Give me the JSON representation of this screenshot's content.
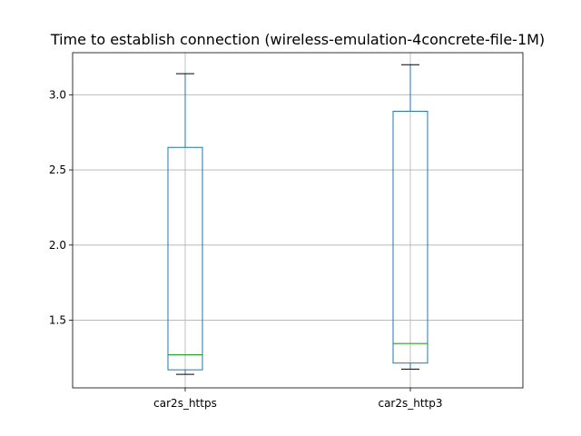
{
  "chart_data": {
    "type": "box",
    "title": "Time to establish connection (wireless-emulation-4concrete-file-1M)",
    "xlabel": "",
    "ylabel": "",
    "categories": [
      "car2s_https",
      "car2s_http3"
    ],
    "boxes": [
      {
        "category": "car2s_https",
        "whisker_low": 1.14,
        "q1": 1.17,
        "median": 1.27,
        "q3": 2.65,
        "whisker_high": 3.14
      },
      {
        "category": "car2s_http3",
        "whisker_low": 1.175,
        "q1": 1.215,
        "median": 1.345,
        "q3": 2.89,
        "whisker_high": 3.2
      }
    ],
    "ylim": [
      1.05,
      3.28
    ],
    "yticks": [
      1.5,
      2.0,
      2.5,
      3.0
    ],
    "ytick_labels": [
      "1.5",
      "2.0",
      "2.5",
      "3.0"
    ],
    "grid": true,
    "colors": {
      "box": "#1f77b4",
      "median": "#2ca02c",
      "cap": "#000000",
      "grid": "#b0b0b0"
    }
  }
}
